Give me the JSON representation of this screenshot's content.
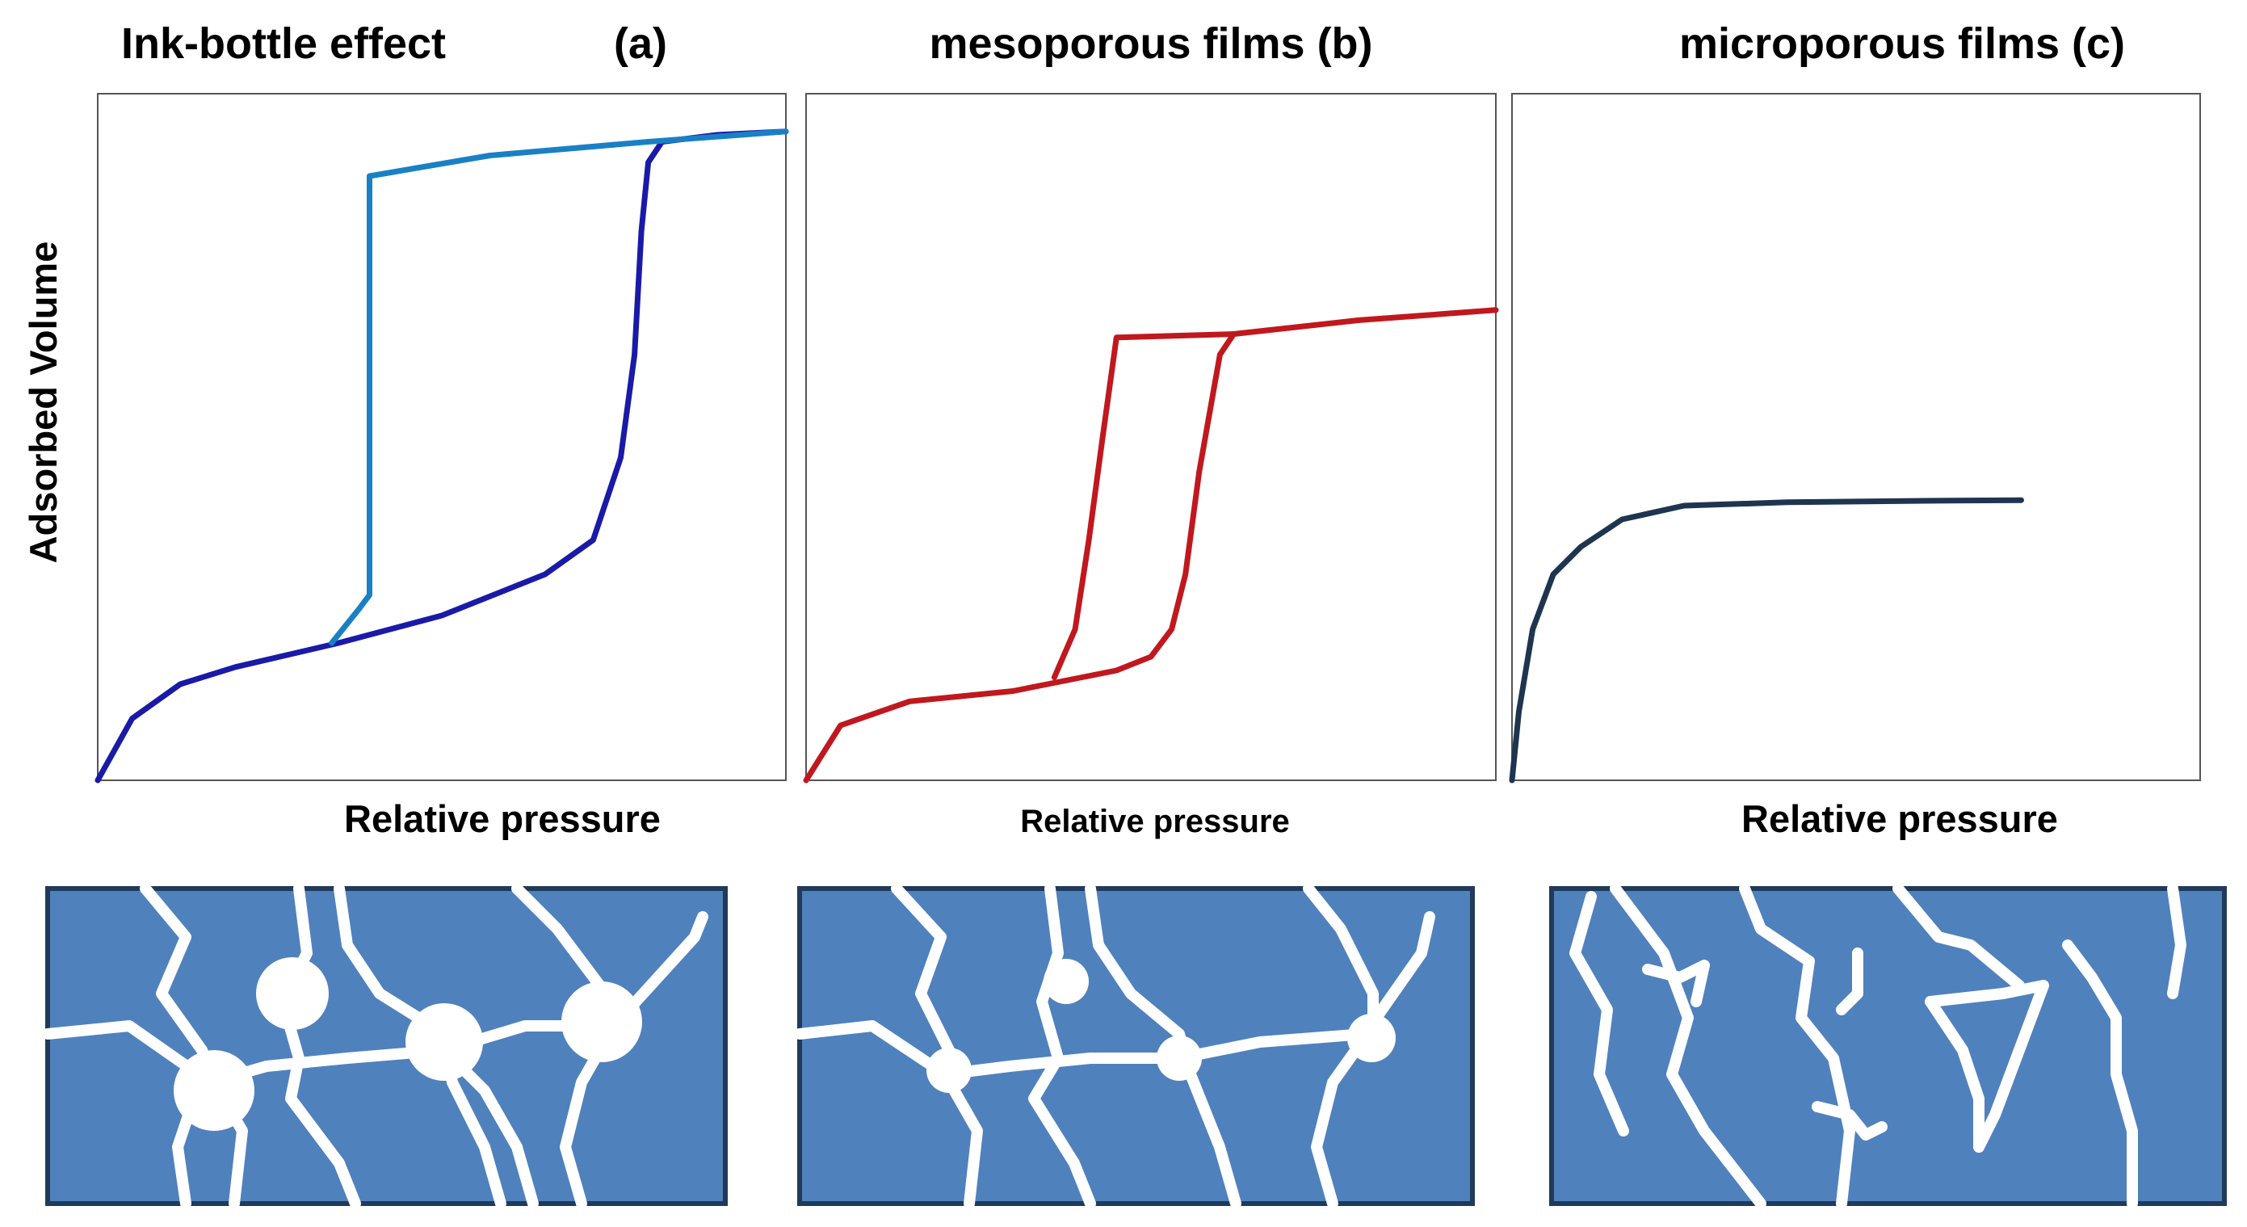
{
  "chart_data": [
    {
      "type": "line",
      "title": "Ink-bottle effect",
      "panel_label": "(a)",
      "xlabel": "Relative pressure",
      "ylabel": "Adsorbed Volume",
      "xlim": [
        0,
        100
      ],
      "ylim": [
        0,
        100
      ],
      "series": [
        {
          "color": "#1a1aa8",
          "x": [
            0,
            5,
            12,
            20,
            35,
            50,
            65,
            72,
            76,
            78,
            79,
            80,
            82,
            90,
            100
          ],
          "values": [
            0,
            9,
            14,
            16.5,
            20,
            24,
            30,
            35,
            47,
            62,
            80,
            90,
            93,
            94,
            94.5
          ]
        },
        {
          "color": "#1a80c6",
          "x": [
            100,
            80,
            57,
            39.5,
            39.5,
            38,
            34
          ],
          "values": [
            94.5,
            93,
            91,
            88,
            27,
            25,
            20
          ]
        }
      ]
    },
    {
      "type": "line",
      "title": "mesoporous films (b)",
      "xlabel": "Relative pressure",
      "xlim": [
        0,
        100
      ],
      "ylim": [
        0,
        100
      ],
      "series": [
        {
          "color": "#c0181e",
          "x": [
            0,
            5,
            15,
            30,
            35,
            45,
            50,
            53,
            55,
            57,
            60,
            62,
            80,
            100
          ],
          "values": [
            0,
            8,
            11.5,
            13,
            14,
            16,
            18,
            22,
            30,
            45,
            62,
            65,
            67,
            68.5
          ]
        },
        {
          "color": "#c0181e",
          "x": [
            62,
            45,
            43,
            41,
            39,
            36
          ],
          "values": [
            65,
            64.5,
            50,
            35,
            22,
            15
          ]
        }
      ]
    },
    {
      "type": "line",
      "title": "microporous films (c)",
      "xlabel": "Relative pressure",
      "xlim": [
        0,
        100
      ],
      "ylim": [
        0,
        100
      ],
      "series": [
        {
          "color": "#1e3550",
          "x": [
            0,
            1,
            3,
            6,
            10,
            16,
            25,
            40,
            60,
            74
          ],
          "values": [
            0,
            10,
            22,
            30,
            34,
            38,
            40,
            40.5,
            40.7,
            40.8
          ]
        }
      ]
    }
  ]
}
